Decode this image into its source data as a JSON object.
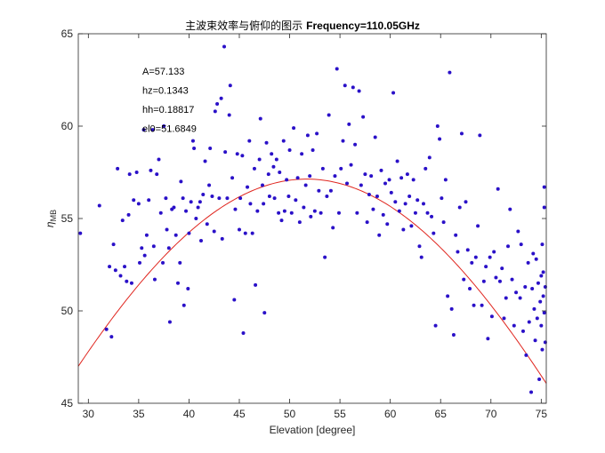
{
  "chart_data": {
    "type": "scatter",
    "title_cn": "主波束效率与俯仰的图示",
    "title_freq": "Frequency=110.05GHz",
    "xlabel": "Elevation [degree]",
    "ylabel_symbol": "η",
    "ylabel_subscript": "MB",
    "xlim": [
      29,
      75.5
    ],
    "ylim": [
      45,
      65
    ],
    "xticks": [
      30,
      35,
      40,
      45,
      50,
      55,
      60,
      65,
      70,
      75
    ],
    "yticks": [
      45,
      50,
      55,
      60,
      65
    ],
    "grid": false,
    "annotations": [
      "A=57.133",
      "hz=0.1343",
      "hh=0.18817",
      "el0=51.6849"
    ],
    "fit": {
      "A": 57.133,
      "hz": 0.1343,
      "hh": 0.18817,
      "el0": 51.6849,
      "color": "#e0261f"
    },
    "point_color": "#2a10c8",
    "points": [
      [
        29.2,
        54.2
      ],
      [
        31.1,
        55.7
      ],
      [
        31.8,
        49.0
      ],
      [
        32.1,
        52.4
      ],
      [
        32.3,
        48.6
      ],
      [
        32.5,
        53.6
      ],
      [
        32.7,
        52.2
      ],
      [
        32.9,
        57.7
      ],
      [
        33.2,
        51.9
      ],
      [
        33.4,
        54.9
      ],
      [
        33.6,
        52.4
      ],
      [
        33.8,
        51.6
      ],
      [
        34.0,
        55.2
      ],
      [
        34.1,
        57.4
      ],
      [
        34.3,
        51.5
      ],
      [
        34.5,
        56.0
      ],
      [
        34.8,
        57.5
      ],
      [
        35.0,
        55.8
      ],
      [
        35.1,
        52.6
      ],
      [
        35.3,
        53.4
      ],
      [
        35.5,
        59.8
      ],
      [
        35.6,
        53.0
      ],
      [
        35.8,
        54.1
      ],
      [
        36.0,
        56.0
      ],
      [
        36.2,
        57.6
      ],
      [
        36.4,
        59.8
      ],
      [
        36.5,
        53.5
      ],
      [
        36.6,
        51.7
      ],
      [
        36.8,
        57.4
      ],
      [
        37.0,
        58.2
      ],
      [
        37.2,
        55.3
      ],
      [
        37.4,
        52.6
      ],
      [
        37.5,
        60.0
      ],
      [
        37.7,
        56.1
      ],
      [
        37.8,
        54.4
      ],
      [
        38.0,
        53.4
      ],
      [
        38.1,
        49.4
      ],
      [
        38.3,
        55.5
      ],
      [
        38.5,
        55.6
      ],
      [
        38.7,
        54.1
      ],
      [
        38.9,
        51.5
      ],
      [
        39.1,
        52.6
      ],
      [
        39.2,
        57.0
      ],
      [
        39.4,
        56.1
      ],
      [
        39.5,
        50.3
      ],
      [
        39.7,
        55.4
      ],
      [
        39.9,
        51.2
      ],
      [
        40.0,
        54.2
      ],
      [
        40.2,
        55.9
      ],
      [
        40.4,
        59.2
      ],
      [
        40.5,
        58.8
      ],
      [
        40.7,
        55.0
      ],
      [
        40.9,
        55.6
      ],
      [
        41.1,
        55.9
      ],
      [
        41.2,
        53.8
      ],
      [
        41.4,
        56.3
      ],
      [
        41.6,
        58.1
      ],
      [
        41.8,
        54.7
      ],
      [
        42.0,
        56.8
      ],
      [
        42.1,
        58.8
      ],
      [
        42.3,
        56.2
      ],
      [
        42.5,
        54.3
      ],
      [
        42.6,
        60.8
      ],
      [
        42.8,
        61.2
      ],
      [
        43.0,
        56.1
      ],
      [
        43.2,
        61.5
      ],
      [
        43.3,
        53.9
      ],
      [
        43.5,
        64.3
      ],
      [
        43.6,
        58.6
      ],
      [
        43.8,
        56.1
      ],
      [
        44.0,
        60.6
      ],
      [
        44.1,
        62.2
      ],
      [
        44.3,
        57.2
      ],
      [
        44.5,
        50.6
      ],
      [
        44.6,
        55.5
      ],
      [
        44.8,
        58.5
      ],
      [
        45.0,
        54.4
      ],
      [
        45.1,
        56.1
      ],
      [
        45.3,
        58.4
      ],
      [
        45.4,
        48.8
      ],
      [
        45.6,
        54.2
      ],
      [
        45.8,
        56.7
      ],
      [
        46.0,
        59.2
      ],
      [
        46.1,
        55.8
      ],
      [
        46.3,
        54.2
      ],
      [
        46.5,
        57.7
      ],
      [
        46.6,
        51.4
      ],
      [
        46.8,
        55.4
      ],
      [
        47.0,
        58.2
      ],
      [
        47.1,
        60.4
      ],
      [
        47.3,
        56.8
      ],
      [
        47.4,
        55.8
      ],
      [
        47.5,
        49.9
      ],
      [
        47.7,
        59.1
      ],
      [
        47.9,
        57.4
      ],
      [
        48.0,
        56.2
      ],
      [
        48.2,
        58.5
      ],
      [
        48.4,
        57.8
      ],
      [
        48.5,
        56.1
      ],
      [
        48.7,
        58.2
      ],
      [
        48.9,
        55.3
      ],
      [
        49.0,
        57.5
      ],
      [
        49.2,
        54.9
      ],
      [
        49.4,
        59.2
      ],
      [
        49.5,
        55.4
      ],
      [
        49.7,
        57.1
      ],
      [
        49.9,
        56.2
      ],
      [
        50.0,
        58.7
      ],
      [
        50.2,
        55.3
      ],
      [
        50.4,
        59.9
      ],
      [
        50.6,
        56.0
      ],
      [
        50.8,
        57.2
      ],
      [
        51.0,
        54.8
      ],
      [
        51.2,
        58.5
      ],
      [
        51.4,
        55.6
      ],
      [
        51.6,
        56.8
      ],
      [
        51.8,
        59.5
      ],
      [
        52.0,
        57.3
      ],
      [
        52.1,
        55.1
      ],
      [
        52.3,
        58.7
      ],
      [
        52.5,
        55.4
      ],
      [
        52.7,
        59.6
      ],
      [
        52.9,
        56.5
      ],
      [
        53.1,
        55.3
      ],
      [
        53.3,
        57.7
      ],
      [
        53.5,
        52.9
      ],
      [
        53.7,
        56.2
      ],
      [
        53.9,
        60.6
      ],
      [
        54.1,
        56.5
      ],
      [
        54.3,
        54.5
      ],
      [
        54.5,
        57.3
      ],
      [
        54.7,
        63.1
      ],
      [
        54.9,
        55.3
      ],
      [
        55.1,
        57.7
      ],
      [
        55.3,
        59.2
      ],
      [
        55.5,
        62.2
      ],
      [
        55.7,
        56.9
      ],
      [
        55.9,
        60.1
      ],
      [
        56.1,
        57.9
      ],
      [
        56.3,
        62.1
      ],
      [
        56.5,
        59.0
      ],
      [
        56.7,
        55.3
      ],
      [
        56.9,
        61.9
      ],
      [
        57.1,
        56.8
      ],
      [
        57.3,
        60.5
      ],
      [
        57.5,
        57.4
      ],
      [
        57.7,
        54.8
      ],
      [
        57.9,
        56.3
      ],
      [
        58.1,
        57.3
      ],
      [
        58.3,
        55.5
      ],
      [
        58.5,
        59.4
      ],
      [
        58.7,
        56.2
      ],
      [
        58.9,
        54.1
      ],
      [
        59.1,
        57.6
      ],
      [
        59.3,
        55.2
      ],
      [
        59.5,
        56.9
      ],
      [
        59.7,
        54.7
      ],
      [
        59.9,
        57.1
      ],
      [
        60.1,
        56.4
      ],
      [
        60.3,
        61.8
      ],
      [
        60.5,
        55.9
      ],
      [
        60.7,
        58.1
      ],
      [
        60.9,
        55.4
      ],
      [
        61.1,
        57.2
      ],
      [
        61.3,
        54.4
      ],
      [
        61.5,
        55.8
      ],
      [
        61.7,
        57.4
      ],
      [
        61.9,
        56.2
      ],
      [
        62.1,
        54.6
      ],
      [
        62.3,
        57.1
      ],
      [
        62.5,
        55.3
      ],
      [
        62.7,
        56.0
      ],
      [
        62.9,
        53.5
      ],
      [
        63.1,
        52.9
      ],
      [
        63.3,
        55.8
      ],
      [
        63.5,
        57.7
      ],
      [
        63.7,
        55.3
      ],
      [
        63.9,
        58.3
      ],
      [
        64.1,
        55.1
      ],
      [
        64.3,
        54.2
      ],
      [
        64.5,
        49.2
      ],
      [
        64.7,
        60.0
      ],
      [
        64.9,
        59.3
      ],
      [
        65.1,
        56.1
      ],
      [
        65.3,
        54.8
      ],
      [
        65.5,
        57.1
      ],
      [
        65.7,
        50.8
      ],
      [
        65.9,
        62.9
      ],
      [
        66.1,
        50.1
      ],
      [
        66.3,
        48.7
      ],
      [
        66.5,
        54.1
      ],
      [
        66.7,
        53.2
      ],
      [
        66.9,
        55.6
      ],
      [
        67.1,
        59.6
      ],
      [
        67.3,
        51.7
      ],
      [
        67.5,
        55.9
      ],
      [
        67.7,
        53.3
      ],
      [
        67.9,
        51.2
      ],
      [
        68.1,
        52.6
      ],
      [
        68.3,
        50.3
      ],
      [
        68.5,
        52.9
      ],
      [
        68.7,
        54.6
      ],
      [
        68.9,
        59.5
      ],
      [
        69.1,
        50.3
      ],
      [
        69.3,
        51.6
      ],
      [
        69.5,
        52.4
      ],
      [
        69.7,
        48.5
      ],
      [
        69.9,
        52.9
      ],
      [
        70.1,
        49.7
      ],
      [
        70.3,
        53.2
      ],
      [
        70.5,
        51.8
      ],
      [
        70.7,
        56.6
      ],
      [
        70.9,
        51.6
      ],
      [
        71.1,
        52.3
      ],
      [
        71.3,
        49.6
      ],
      [
        71.5,
        50.7
      ],
      [
        71.7,
        53.5
      ],
      [
        71.9,
        55.5
      ],
      [
        72.1,
        51.7
      ],
      [
        72.3,
        49.2
      ],
      [
        72.5,
        51.0
      ],
      [
        72.7,
        54.3
      ],
      [
        72.9,
        50.7
      ],
      [
        73.0,
        53.6
      ],
      [
        73.2,
        48.9
      ],
      [
        73.4,
        51.3
      ],
      [
        73.5,
        47.6
      ],
      [
        73.7,
        52.6
      ],
      [
        73.8,
        49.4
      ],
      [
        74.0,
        45.6
      ],
      [
        74.1,
        51.2
      ],
      [
        74.2,
        53.1
      ],
      [
        74.3,
        50.1
      ],
      [
        74.4,
        48.4
      ],
      [
        74.5,
        52.8
      ],
      [
        74.6,
        49.6
      ],
      [
        74.7,
        51.5
      ],
      [
        74.8,
        46.3
      ],
      [
        74.9,
        50.5
      ],
      [
        75.0,
        51.9
      ],
      [
        75.0,
        49.2
      ],
      [
        75.1,
        53.6
      ],
      [
        75.1,
        47.9
      ],
      [
        75.2,
        52.1
      ],
      [
        75.2,
        50.8
      ],
      [
        75.3,
        56.7
      ],
      [
        75.3,
        49.9
      ],
      [
        75.3,
        55.6
      ],
      [
        75.4,
        51.3
      ],
      [
        75.4,
        48.3
      ]
    ]
  }
}
